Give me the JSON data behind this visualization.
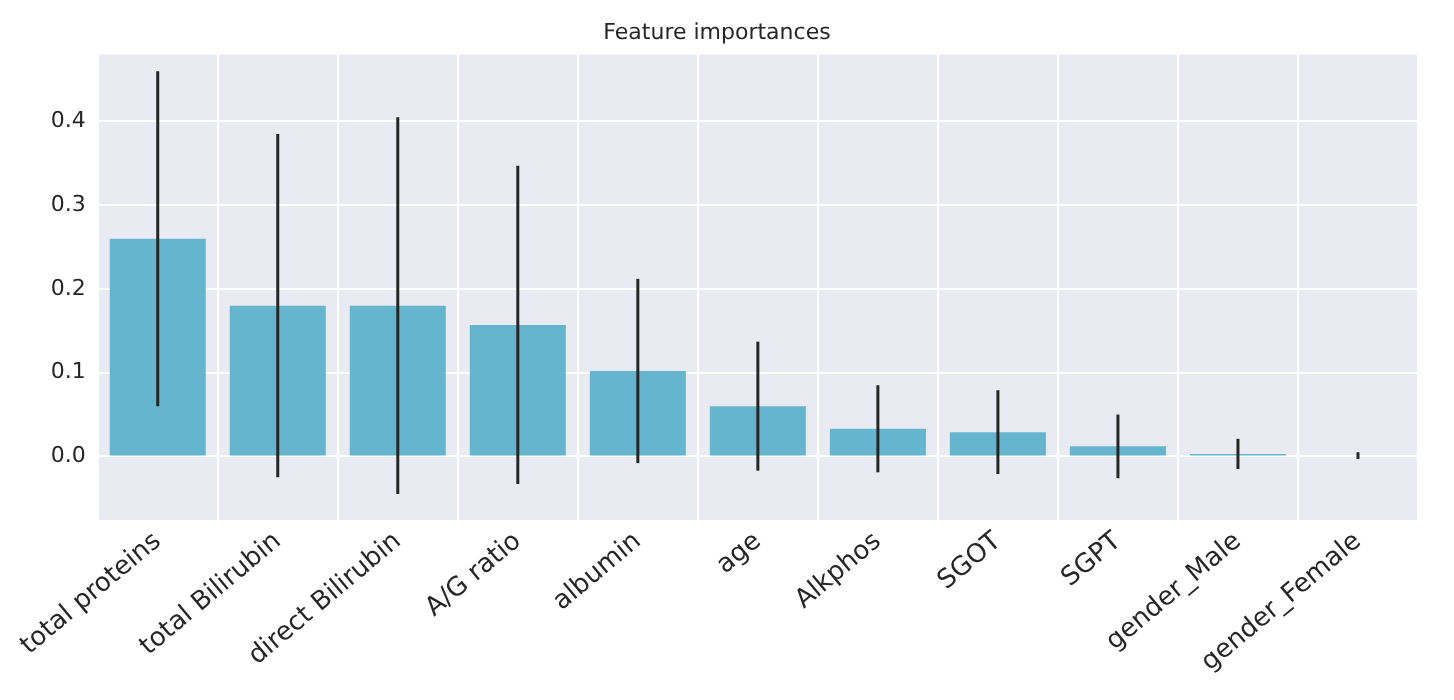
{
  "chart_data": {
    "type": "bar",
    "title": "Feature importances",
    "categories": [
      "total proteins",
      "total Bilirubin",
      "direct Bilirubin",
      "A/G ratio",
      "albumin",
      "age",
      "Alkphos",
      "SGOT",
      "SGPT",
      "gender_Male",
      "gender_Female"
    ],
    "values": [
      0.26,
      0.18,
      0.18,
      0.157,
      0.102,
      0.06,
      0.033,
      0.029,
      0.012,
      0.003,
      0.001
    ],
    "errors": [
      0.2,
      0.205,
      0.225,
      0.19,
      0.11,
      0.077,
      0.052,
      0.05,
      0.038,
      0.018,
      0.004
    ],
    "color": "#64b5cd",
    "ylim": [
      -0.076,
      0.48
    ],
    "yticks": [
      {
        "value": 0,
        "label": "0.0"
      },
      {
        "value": 0.1,
        "label": "0.1"
      },
      {
        "value": 0.2,
        "label": "0.2"
      },
      {
        "value": 0.3,
        "label": "0.3"
      },
      {
        "value": 0.4,
        "label": "0.4"
      }
    ],
    "grid": true
  }
}
